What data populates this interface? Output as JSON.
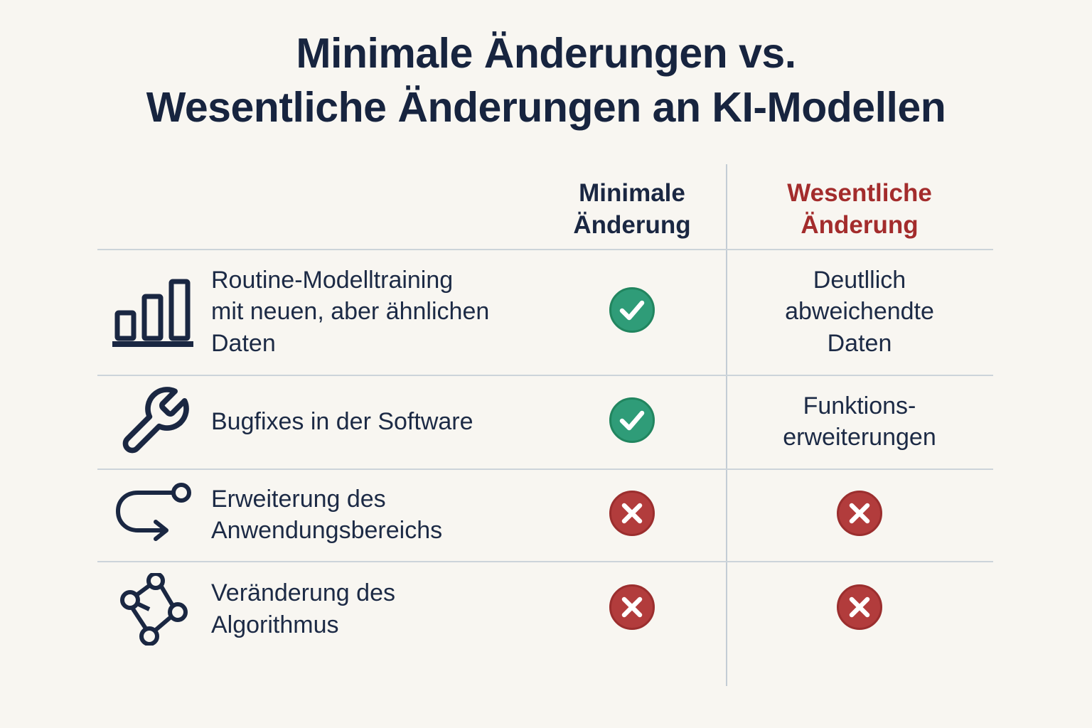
{
  "title": "Minimale Änderungen vs.\nWesentliche Änderungen an KI-Modellen",
  "colors": {
    "background": "#f8f6f1",
    "heading_navy": "#17243f",
    "wesentlich_red": "#a32c2c",
    "check_green": "#2f9c78",
    "cross_red": "#b23c3c",
    "divider_gray": "#ccd4da"
  },
  "table": {
    "columns": [
      {
        "key": "minimal",
        "label": "Minimale\nÄnderung"
      },
      {
        "key": "wesentlich",
        "label": "Wesentliche\nÄnderung"
      }
    ],
    "rows": [
      {
        "icon": "bar-chart-icon",
        "label": "Routine-Modelltraining\nmit neuen, aber ähnlichen\nDaten",
        "minimal": {
          "type": "check"
        },
        "wesentlich": {
          "type": "text",
          "text": "Deutllich\nabweichendte\nDaten"
        }
      },
      {
        "icon": "wrench-icon",
        "label": "Bugfixes in der Software",
        "minimal": {
          "type": "check"
        },
        "wesentlich": {
          "type": "text",
          "text": "Funktions-\nerweiterungen"
        }
      },
      {
        "icon": "uturn-arrow-icon",
        "label": "Erweiterung des\nAnwendungsbereichs",
        "minimal": {
          "type": "cross"
        },
        "wesentlich": {
          "type": "cross"
        }
      },
      {
        "icon": "network-icon",
        "label": "Veränderung des\nAlgorithmus",
        "minimal": {
          "type": "cross"
        },
        "wesentlich": {
          "type": "cross"
        }
      }
    ]
  }
}
